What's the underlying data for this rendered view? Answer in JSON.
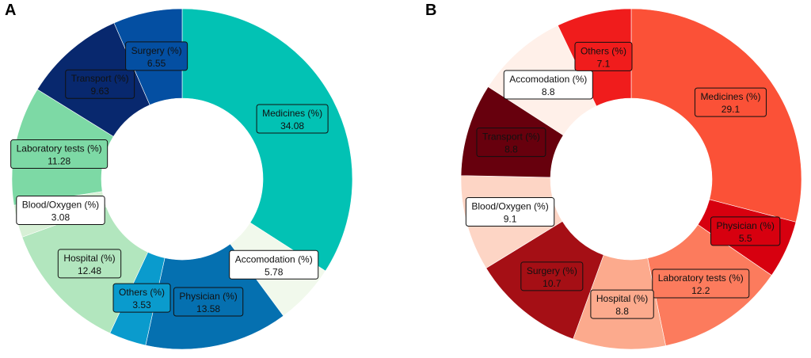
{
  "panels": [
    {
      "letter": "A"
    },
    {
      "letter": "B"
    }
  ],
  "chart_data": [
    {
      "type": "pie",
      "donut": true,
      "start": "top",
      "direction": "clockwise",
      "slices": [
        {
          "label": "Medicines (%)",
          "value": 34.08,
          "display": "34.08",
          "color": "#02c2b4",
          "box_color": "#02c2b4",
          "text_color": "#111111"
        },
        {
          "label": "Accomodation (%)",
          "value": 5.78,
          "display": "5.78",
          "color": "#f1f9ec",
          "box_color": "#ffffff",
          "text_color": "#111111"
        },
        {
          "label": "Physician (%)",
          "value": 13.58,
          "display": "13.58",
          "color": "#0570b0",
          "box_color": "#0570b0",
          "text_color": "#111111"
        },
        {
          "label": "Others (%)",
          "value": 3.53,
          "display": "3.53",
          "color": "#0a9bcd",
          "box_color": "#0a9bcd",
          "text_color": "#111111"
        },
        {
          "label": "Hospital (%)",
          "value": 12.48,
          "display": "12.48",
          "color": "#b2e6be",
          "box_color": "#b2e6be",
          "text_color": "#111111"
        },
        {
          "label": "Blood/Oxygen (%)",
          "value": 3.08,
          "display": "3.08",
          "color": "#d7f0d6",
          "box_color": "#ffffff",
          "text_color": "#111111"
        },
        {
          "label": "Laboratory tests (%)",
          "value": 11.28,
          "display": "11.28",
          "color": "#7dd9a5",
          "box_color": "#7dd9a5",
          "text_color": "#111111"
        },
        {
          "label": "Transport (%)",
          "value": 9.63,
          "display": "9.63",
          "color": "#08286e",
          "box_color": "#08286e",
          "text_color": "#111111"
        },
        {
          "label": "Surgery (%)",
          "value": 6.55,
          "display": "6.55",
          "color": "#044fa2",
          "box_color": "#044fa2",
          "text_color": "#111111"
        }
      ]
    },
    {
      "type": "pie",
      "donut": true,
      "start": "top",
      "direction": "clockwise",
      "slices": [
        {
          "label": "Medicines (%)",
          "value": 29.1,
          "display": "29.1",
          "color": "#fb5137",
          "box_color": "#fb5137",
          "text_color": "#111111"
        },
        {
          "label": "Physician (%)",
          "value": 5.5,
          "display": "5.5",
          "color": "#d7000f",
          "box_color": "#d7000f",
          "text_color": "#111111"
        },
        {
          "label": "Laboratory tests (%)",
          "value": 12.2,
          "display": "12.2",
          "color": "#fc7b5d",
          "box_color": "#fc7b5d",
          "text_color": "#111111"
        },
        {
          "label": "Hospital (%)",
          "value": 8.8,
          "display": "8.8",
          "color": "#fcaa8d",
          "box_color": "#fcaa8d",
          "text_color": "#111111"
        },
        {
          "label": "Surgery (%)",
          "value": 10.7,
          "display": "10.7",
          "color": "#a50f15",
          "box_color": "#a50f15",
          "text_color": "#111111"
        },
        {
          "label": "Blood/Oxygen (%)",
          "value": 9.1,
          "display": "9.1",
          "color": "#fdd5c5",
          "box_color": "#ffffff",
          "text_color": "#111111"
        },
        {
          "label": "Transport (%)",
          "value": 8.8,
          "display": "8.8",
          "color": "#67000d",
          "box_color": "#67000d",
          "text_color": "#111111"
        },
        {
          "label": "Accomodation (%)",
          "value": 8.8,
          "display": "8.8",
          "color": "#fff0e9",
          "box_color": "#ffffff",
          "text_color": "#111111"
        },
        {
          "label": "Others (%)",
          "value": 7.1,
          "display": "7.1",
          "color": "#f01c1c",
          "box_color": "#f01c1c",
          "text_color": "#111111"
        }
      ]
    }
  ]
}
